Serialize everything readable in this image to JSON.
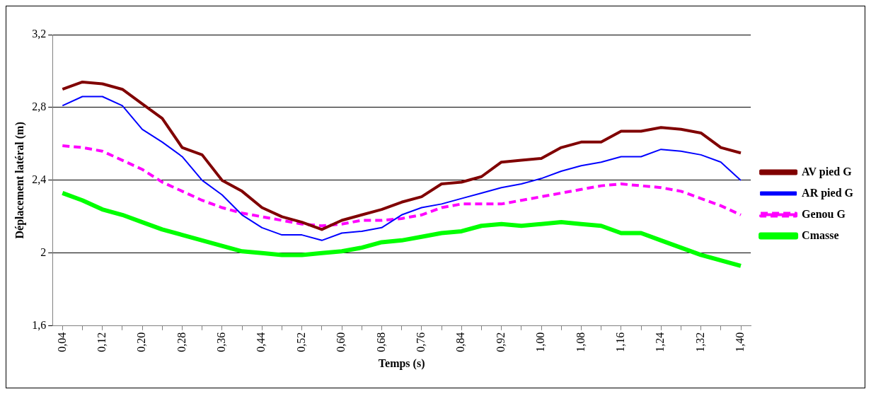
{
  "chart_data": {
    "type": "line",
    "xlabel": "Temps (s)",
    "ylabel": "Déplacement latéral (m)",
    "categories": [
      "0,04",
      null,
      "0,12",
      null,
      "0,20",
      null,
      "0,28",
      null,
      "0,36",
      null,
      "0,44",
      null,
      "0,52",
      null,
      "0,60",
      null,
      "0,68",
      null,
      "0,76",
      null,
      "0,84",
      null,
      "0,92",
      null,
      "1,00",
      null,
      "1,08",
      null,
      "1,16",
      null,
      "1,24",
      null,
      "1,32",
      null,
      "1,40"
    ],
    "series": [
      {
        "name": "AV pied G",
        "color": "#800000",
        "line_style": "solid",
        "values": [
          2.9,
          2.94,
          2.93,
          2.9,
          2.82,
          2.74,
          2.58,
          2.54,
          2.4,
          2.34,
          2.25,
          2.2,
          2.17,
          2.13,
          2.18,
          2.21,
          2.24,
          2.28,
          2.31,
          2.38,
          2.39,
          2.42,
          2.5,
          2.51,
          2.52,
          2.58,
          2.61,
          2.61,
          2.67,
          2.67,
          2.69,
          2.68,
          2.66,
          2.58,
          2.55
        ]
      },
      {
        "name": "AR pied G",
        "color": "#0000ff",
        "line_style": "solid",
        "values": [
          2.81,
          2.86,
          2.86,
          2.81,
          2.68,
          2.61,
          2.53,
          2.4,
          2.32,
          2.21,
          2.14,
          2.1,
          2.1,
          2.07,
          2.11,
          2.12,
          2.14,
          2.21,
          2.25,
          2.27,
          2.3,
          2.33,
          2.36,
          2.38,
          2.41,
          2.45,
          2.48,
          2.5,
          2.53,
          2.53,
          2.57,
          2.56,
          2.54,
          2.5,
          2.4
        ]
      },
      {
        "name": "Genou G",
        "color": "#ff00ff",
        "line_style": "dashed",
        "values": [
          2.59,
          2.58,
          2.56,
          2.51,
          2.46,
          2.39,
          2.34,
          2.29,
          2.25,
          2.22,
          2.2,
          2.18,
          2.16,
          2.15,
          2.16,
          2.18,
          2.18,
          2.19,
          2.21,
          2.25,
          2.27,
          2.27,
          2.27,
          2.29,
          2.31,
          2.33,
          2.35,
          2.37,
          2.38,
          2.37,
          2.36,
          2.34,
          2.3,
          2.26,
          2.21
        ]
      },
      {
        "name": "Cmasse",
        "color": "#00ff00",
        "line_style": "solid",
        "values": [
          2.33,
          2.29,
          2.24,
          2.21,
          2.17,
          2.13,
          2.1,
          2.07,
          2.04,
          2.01,
          2.0,
          1.99,
          1.99,
          2.0,
          2.01,
          2.03,
          2.06,
          2.07,
          2.09,
          2.11,
          2.12,
          2.15,
          2.16,
          2.15,
          2.16,
          2.17,
          2.16,
          2.15,
          2.11,
          2.11,
          2.07,
          2.03,
          1.99,
          1.96,
          1.93
        ]
      }
    ],
    "ylim": [
      1.6,
      3.2
    ],
    "yticks": [
      {
        "value": 1.6,
        "label": "1,6"
      },
      2,
      {
        "value": 2.4,
        "label": "2,4"
      },
      {
        "value": 2.8,
        "label": "2,8"
      },
      {
        "value": 3.2,
        "label": "3,2"
      }
    ],
    "grid": "y",
    "legend": "right",
    "marker": "none"
  }
}
